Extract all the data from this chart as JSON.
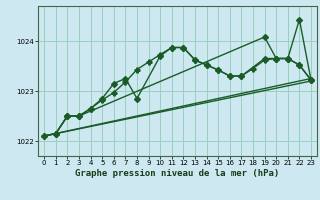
{
  "title": "Graphe pression niveau de la mer (hPa)",
  "bg_color": "#cde8f0",
  "grid_color": "#9acfbf",
  "line_color": "#1a5c28",
  "xlim": [
    -0.5,
    23.5
  ],
  "ylim": [
    1021.7,
    1024.7
  ],
  "yticks": [
    1022,
    1023,
    1024
  ],
  "xticks": [
    0,
    1,
    2,
    3,
    4,
    5,
    6,
    7,
    8,
    9,
    10,
    11,
    12,
    13,
    14,
    15,
    16,
    17,
    18,
    19,
    20,
    21,
    22,
    23
  ],
  "line1_x": [
    0,
    23
  ],
  "line1_y": [
    1022.1,
    1023.2
  ],
  "line2_x": [
    0,
    23
  ],
  "line2_y": [
    1022.1,
    1023.25
  ],
  "line3_x": [
    0,
    1,
    2,
    3,
    4,
    5,
    6,
    7,
    8,
    10,
    11,
    12,
    13,
    14,
    15,
    16,
    17,
    19,
    20,
    21,
    22,
    23
  ],
  "line3_y": [
    1022.1,
    1022.15,
    1022.5,
    1022.5,
    1022.65,
    1022.85,
    1023.15,
    1023.25,
    1022.85,
    1023.7,
    1023.87,
    1023.87,
    1023.62,
    1023.52,
    1023.42,
    1023.3,
    1023.3,
    1023.65,
    1023.65,
    1023.65,
    1023.52,
    1023.22
  ],
  "line4_x": [
    0,
    1,
    2,
    3,
    4,
    5,
    6,
    7,
    8,
    9,
    10,
    11,
    12,
    13,
    14,
    15,
    16,
    17,
    18,
    19,
    20,
    21,
    22,
    23
  ],
  "line4_y": [
    1022.1,
    1022.15,
    1022.5,
    1022.5,
    1022.65,
    1022.82,
    1022.97,
    1023.18,
    1023.43,
    1023.58,
    1023.73,
    1023.87,
    1023.87,
    1023.62,
    1023.52,
    1023.42,
    1023.3,
    1023.3,
    1023.45,
    1023.62,
    1023.65,
    1023.65,
    1023.52,
    1023.22
  ],
  "line5_x": [
    1,
    2,
    3,
    19,
    20,
    21,
    22,
    23
  ],
  "line5_y": [
    1022.15,
    1022.5,
    1022.5,
    1024.08,
    1023.65,
    1023.65,
    1024.43,
    1023.22
  ]
}
